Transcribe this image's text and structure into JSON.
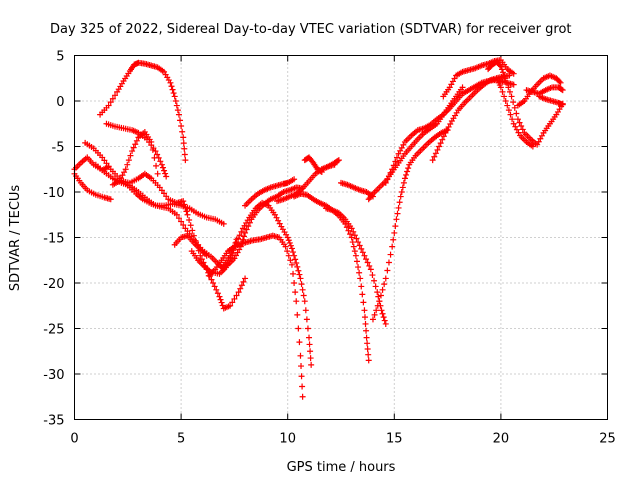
{
  "chart_data": {
    "type": "scatter",
    "title": "Day 325 of 2022, Sidereal Day-to-day VTEC variation (SDTVAR) for receiver grot",
    "xlabel": "GPS time / hours",
    "ylabel": "SDTVAR / TECUs",
    "xlim": [
      0,
      25
    ],
    "ylim": [
      -35,
      5
    ],
    "xticks": [
      "0",
      "5",
      "10",
      "15",
      "20",
      "25"
    ],
    "yticks": [
      "5",
      "0",
      "-5",
      "-10",
      "-15",
      "-20",
      "-25",
      "-30",
      "-35"
    ],
    "grid": true,
    "marker": "+",
    "color": "#ff0000",
    "series": [
      {
        "x": [
          0.0,
          0.3,
          0.6,
          0.9,
          1.3,
          1.6
        ],
        "y": [
          -7.5,
          -6.8,
          -6.2,
          -7.0,
          -7.6,
          -7.2
        ]
      },
      {
        "x": [
          1.2,
          1.6,
          2.0,
          2.3,
          2.6,
          2.8,
          3.0,
          3.3,
          3.6,
          3.9,
          4.2,
          4.5,
          4.7,
          4.9,
          5.1,
          5.2
        ],
        "y": [
          -1.5,
          -0.5,
          1.0,
          2.2,
          3.3,
          4.0,
          4.2,
          4.1,
          3.9,
          3.7,
          3.2,
          2.0,
          0.5,
          -1.5,
          -4.0,
          -6.5
        ]
      },
      {
        "x": [
          0.0,
          0.3,
          0.6,
          1.0,
          1.4,
          1.7
        ],
        "y": [
          -8.0,
          -9.0,
          -9.8,
          -10.3,
          -10.6,
          -10.8
        ]
      },
      {
        "x": [
          0.5,
          0.9,
          1.3,
          1.7,
          2.1,
          2.5,
          2.9,
          3.2,
          3.6,
          4.0,
          4.4,
          4.8,
          5.2,
          5.6,
          6.0,
          6.4,
          6.7,
          7.0
        ],
        "y": [
          -4.6,
          -5.2,
          -6.2,
          -7.5,
          -8.5,
          -9.3,
          -10.2,
          -10.8,
          -11.3,
          -11.6,
          -11.8,
          -12.5,
          -14.0,
          -15.2,
          -16.4,
          -17.1,
          -17.8,
          -18.5
        ]
      },
      {
        "x": [
          1.5,
          1.9,
          2.3,
          2.7,
          3.0,
          3.4,
          3.8,
          4.1,
          4.3
        ],
        "y": [
          -2.5,
          -2.8,
          -3.0,
          -3.2,
          -3.5,
          -4.2,
          -5.5,
          -7.0,
          -8.3
        ]
      },
      {
        "x": [
          1.8,
          2.1,
          2.4,
          2.7,
          3.0,
          3.3,
          3.6,
          3.9
        ],
        "y": [
          -9.2,
          -8.8,
          -7.5,
          -5.5,
          -4.0,
          -3.4,
          -4.5,
          -8.0
        ]
      },
      {
        "x": [
          1.0,
          1.4,
          1.8,
          2.2,
          2.6,
          3.0,
          3.4,
          3.8,
          4.2,
          4.6,
          5.0,
          5.4,
          5.8,
          6.2,
          6.6,
          7.0
        ],
        "y": [
          -7.0,
          -7.8,
          -8.5,
          -9.0,
          -9.3,
          -10.0,
          -10.8,
          -11.5,
          -11.5,
          -11.3,
          -11.5,
          -11.8,
          -12.4,
          -12.8,
          -13.0,
          -13.5
        ]
      },
      {
        "x": [
          2.2,
          2.6,
          3.0,
          3.3,
          3.6,
          4.0,
          4.4,
          4.8,
          5.1,
          5.3,
          5.6,
          5.9,
          6.2,
          6.5,
          6.8,
          7.0,
          7.3,
          7.7,
          8.0
        ],
        "y": [
          -8.8,
          -9.0,
          -8.5,
          -8.0,
          -8.5,
          -9.5,
          -10.8,
          -11.2,
          -11.0,
          -12.5,
          -14.8,
          -17.0,
          -18.5,
          -20.0,
          -21.5,
          -22.8,
          -22.5,
          -21.0,
          -19.5
        ]
      },
      {
        "x": [
          4.7,
          5.0,
          5.3,
          5.6,
          5.9,
          6.2
        ],
        "y": [
          -15.8,
          -15.0,
          -14.8,
          -15.6,
          -16.3,
          -17.0
        ]
      },
      {
        "x": [
          5.5,
          5.8,
          6.1,
          6.4,
          6.8,
          7.1,
          7.4,
          7.6
        ],
        "y": [
          -16.5,
          -17.5,
          -18.2,
          -18.8,
          -19.0,
          -18.3,
          -16.8,
          -15.2
        ]
      },
      {
        "x": [
          6.3,
          6.6,
          6.9,
          7.2,
          7.5,
          7.8,
          8.1,
          8.4,
          8.7,
          9.0,
          9.3,
          9.6,
          9.9,
          10.2,
          10.4,
          10.6,
          10.7
        ],
        "y": [
          -19.2,
          -18.5,
          -17.5,
          -16.5,
          -16.0,
          -15.7,
          -15.5,
          -15.3,
          -15.2,
          -15.0,
          -14.8,
          -15.0,
          -16.0,
          -18.0,
          -22.0,
          -28.0,
          -32.5
        ]
      },
      {
        "x": [
          7.0,
          7.3,
          7.6,
          7.9,
          8.2,
          8.5,
          8.8,
          9.1,
          9.4,
          9.7,
          10.0,
          10.2,
          10.4,
          10.6,
          10.8,
          11.0,
          11.1
        ],
        "y": [
          -18.0,
          -17.0,
          -15.5,
          -14.0,
          -12.8,
          -11.8,
          -11.2,
          -11.5,
          -12.5,
          -13.8,
          -15.0,
          -16.2,
          -17.8,
          -19.5,
          -22.0,
          -26.0,
          -29.0
        ]
      },
      {
        "x": [
          6.9,
          7.2,
          7.5,
          7.8,
          8.0,
          8.3,
          8.6,
          8.9,
          9.2,
          9.5,
          9.8,
          10.1,
          10.4,
          10.7
        ],
        "y": [
          -18.3,
          -18.0,
          -17.3,
          -16.0,
          -14.5,
          -13.0,
          -12.0,
          -11.3,
          -10.8,
          -10.5,
          -10.0,
          -9.8,
          -9.5,
          -9.6
        ]
      },
      {
        "x": [
          8.0,
          8.3,
          8.6,
          8.9,
          9.2,
          9.5,
          9.8,
          10.0,
          10.3
        ],
        "y": [
          -11.5,
          -10.8,
          -10.2,
          -9.8,
          -9.5,
          -9.3,
          -9.1,
          -9.0,
          -8.6
        ]
      },
      {
        "x": [
          9.5,
          9.8,
          10.1,
          10.4,
          10.7,
          11.0,
          11.3,
          11.6,
          11.9,
          12.2
        ],
        "y": [
          -11.0,
          -10.8,
          -10.5,
          -10.2,
          -9.6,
          -8.8,
          -8.0,
          -7.5,
          -7.2,
          -7.0
        ]
      },
      {
        "x": [
          10.8,
          11.0,
          11.2,
          11.4,
          11.6
        ],
        "y": [
          -6.5,
          -6.2,
          -6.8,
          -7.5,
          -7.8
        ]
      },
      {
        "x": [
          11.6,
          11.9,
          12.2,
          12.4
        ],
        "y": [
          -7.5,
          -7.2,
          -6.8,
          -6.5
        ]
      },
      {
        "x": [
          10.3,
          10.6,
          10.9,
          11.2,
          11.5,
          11.8,
          12.1,
          12.4,
          12.7,
          13.0,
          13.2,
          13.4,
          13.6,
          13.7,
          13.8
        ],
        "y": [
          -10.5,
          -10.2,
          -10.3,
          -10.8,
          -11.2,
          -11.5,
          -12.0,
          -12.6,
          -13.5,
          -15.0,
          -17.0,
          -19.5,
          -23.0,
          -26.0,
          -28.5
        ]
      },
      {
        "x": [
          11.8,
          12.1,
          12.4,
          12.7,
          13.0,
          13.3,
          13.6,
          13.9,
          14.2,
          14.4,
          14.6
        ],
        "y": [
          -11.8,
          -12.0,
          -12.3,
          -13.0,
          -14.0,
          -15.5,
          -17.0,
          -18.5,
          -21.0,
          -23.0,
          -24.5
        ]
      },
      {
        "x": [
          12.5,
          12.8,
          13.1,
          13.4,
          13.7,
          14.0
        ],
        "y": [
          -9.0,
          -9.2,
          -9.5,
          -9.8,
          -10.0,
          -10.5
        ]
      },
      {
        "x": [
          13.8,
          14.0,
          14.3,
          14.6,
          14.9,
          15.2,
          15.5,
          15.8,
          16.1,
          16.4,
          16.7,
          17.0,
          17.3,
          17.6,
          17.9,
          18.2
        ],
        "y": [
          -10.8,
          -10.2,
          -9.5,
          -8.8,
          -7.8,
          -6.8,
          -5.8,
          -5.0,
          -4.2,
          -3.5,
          -3.0,
          -2.5,
          -1.5,
          -0.5,
          0.5,
          1.5
        ]
      },
      {
        "x": [
          14.0,
          14.3,
          14.6,
          14.9,
          15.1,
          15.3,
          15.5,
          15.7,
          16.0,
          16.3,
          16.6,
          16.9,
          17.2,
          17.5
        ],
        "y": [
          -24.0,
          -22.0,
          -19.5,
          -16.0,
          -13.0,
          -10.5,
          -8.5,
          -7.0,
          -6.0,
          -5.3,
          -4.6,
          -4.0,
          -3.5,
          -3.2
        ]
      },
      {
        "x": [
          14.6,
          14.9,
          15.2,
          15.5,
          15.8,
          16.1,
          16.4,
          16.7,
          17.0,
          17.3,
          17.6,
          17.9,
          18.2,
          18.5,
          18.8,
          19.1,
          19.4,
          19.7,
          20.0,
          20.3,
          20.6
        ],
        "y": [
          -9.0,
          -7.5,
          -5.8,
          -4.5,
          -3.8,
          -3.2,
          -3.0,
          -2.6,
          -2.0,
          -1.5,
          -0.8,
          0.0,
          0.8,
          1.2,
          1.6,
          2.0,
          2.2,
          2.3,
          2.2,
          2.0,
          1.8
        ]
      },
      {
        "x": [
          16.8,
          17.1,
          17.4,
          17.7,
          18.0,
          18.3,
          18.6,
          18.9,
          19.2,
          19.5,
          19.8,
          20.1,
          20.4
        ],
        "y": [
          -6.5,
          -5.0,
          -3.5,
          -2.2,
          -1.0,
          -0.2,
          0.5,
          1.2,
          1.8,
          2.3,
          2.5,
          2.7,
          2.8
        ]
      },
      {
        "x": [
          17.3,
          17.6,
          17.9,
          18.2,
          18.5,
          18.8,
          19.1,
          19.4,
          19.7,
          20.0,
          20.3,
          20.6
        ],
        "y": [
          0.5,
          1.5,
          2.8,
          3.2,
          3.4,
          3.6,
          3.9,
          4.1,
          4.4,
          4.5,
          3.5,
          3.0
        ]
      },
      {
        "x": [
          19.4,
          19.6,
          19.8,
          20.0,
          20.2,
          20.5,
          20.8,
          21.1,
          21.4,
          21.7,
          22.0,
          22.3,
          22.6,
          22.9
        ],
        "y": [
          3.5,
          4.0,
          4.3,
          3.8,
          2.5,
          0.5,
          -2.0,
          -3.5,
          -4.2,
          -4.8,
          -3.5,
          -2.5,
          -1.5,
          -0.3
        ]
      },
      {
        "x": [
          19.8,
          20.0,
          20.3,
          20.6,
          20.9,
          21.2,
          21.5
        ],
        "y": [
          2.5,
          1.5,
          -0.5,
          -2.5,
          -3.8,
          -4.5,
          -5.0
        ]
      },
      {
        "x": [
          20.8,
          21.1,
          21.4,
          21.7,
          22.0,
          22.3,
          22.6,
          22.8
        ],
        "y": [
          -0.5,
          0.0,
          1.0,
          1.8,
          2.5,
          2.8,
          2.5,
          2.0
        ]
      },
      {
        "x": [
          21.2,
          21.5,
          21.8,
          22.1,
          22.4,
          22.7,
          22.9
        ],
        "y": [
          1.2,
          1.0,
          0.8,
          1.2,
          1.5,
          1.5,
          1.2
        ]
      },
      {
        "x": [
          21.8,
          22.1,
          22.4,
          22.7,
          22.9
        ],
        "y": [
          0.5,
          0.2,
          0.0,
          -0.2,
          -0.4
        ]
      }
    ]
  }
}
